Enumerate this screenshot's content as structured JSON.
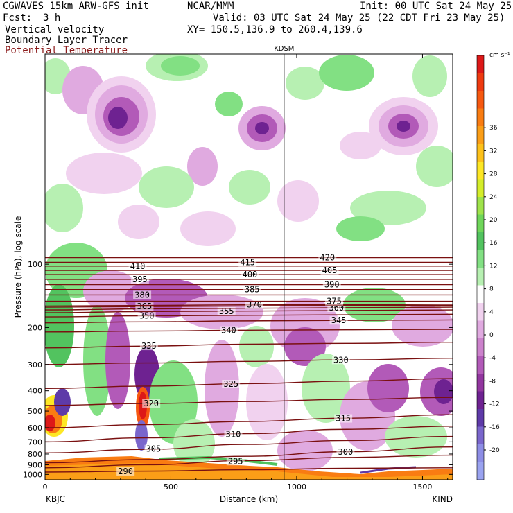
{
  "header": {
    "model": "CGWAVES 15km ARW-GFS init",
    "org": "NCAR/MMM",
    "init": "Init: 00 UTC Sat 24 May 25",
    "fcst_label": "Fcst:",
    "fcst_value": "3 h",
    "valid": "Valid: 03 UTC Sat 24 May 25 (22 CDT Fri 23 May 25)",
    "field1": "Vertical velocity",
    "field2": "Boundary Layer Tracer",
    "field3": "Potential Temperature",
    "xy": "XY= 150.5,136.9 to 260.4,139.6",
    "field3_color": "#8b1a1a"
  },
  "chart_data": {
    "type": "heatmap",
    "title": "",
    "xlabel": "Distance (km)",
    "ylabel": "Pressure (hPa), log scale",
    "xlim": [
      0,
      1620
    ],
    "ylim": [
      1060,
      10
    ],
    "yscale": "log",
    "x_ticks": [
      0,
      500,
      1000,
      1500
    ],
    "y_ticks": [
      100,
      200,
      300,
      400,
      500,
      600,
      700,
      800,
      900,
      1000
    ],
    "station_marker": {
      "label": "KDSM",
      "x": 950
    },
    "endpoints": {
      "left": "KBJC",
      "right": "KIND"
    },
    "colorbar": {
      "units": "cm s⁻¹",
      "tick_labels": [
        36,
        32,
        28,
        24,
        20,
        16,
        12,
        8,
        4,
        0,
        -4,
        -8,
        -12,
        -16,
        -20
      ],
      "colors": [
        "#dd1818",
        "#ee3a10",
        "#f65810",
        "#f97c12",
        "#fb9e17",
        "#fdc11a",
        "#fde725",
        "#d4ed2a",
        "#9fe34b",
        "#6fd65a",
        "#52c35f",
        "#82e083",
        "#b7f0b2",
        "#ffffff",
        "#f1d2ef",
        "#e0aae0",
        "#cc82cc",
        "#b25ab8",
        "#92369f",
        "#6e2291",
        "#5e3aa8",
        "#7a66cc",
        "#8d8de5",
        "#9aa3f0"
      ]
    },
    "theta_contours": [
      {
        "label": "290",
        "p": [
          975,
          965,
          950,
          935,
          930
        ]
      },
      {
        "label": "295",
        "p": [
          930,
          900,
          860,
          830,
          810
        ]
      },
      {
        "label": "300",
        "p": [
          880,
          850,
          820,
          780,
          740
        ]
      },
      {
        "label": "305",
        "p": [
          790,
          760,
          720,
          690,
          660
        ]
      },
      {
        "label": "310",
        "p": [
          700,
          670,
          640,
          610,
          590
        ]
      },
      {
        "label": "315",
        "p": [
          600,
          580,
          560,
          540,
          520
        ]
      },
      {
        "label": "320",
        "p": [
          470,
          460,
          450,
          440,
          430
        ]
      },
      {
        "label": "325",
        "p": [
          390,
          380,
          370,
          360,
          350
        ]
      },
      {
        "label": "330",
        "p": [
          300,
          295,
          290,
          285,
          280
        ]
      },
      {
        "label": "335",
        "p": [
          250,
          245,
          240,
          238,
          235
        ]
      },
      {
        "label": "340",
        "p": [
          210,
          208,
          206,
          205,
          204
        ]
      },
      {
        "label": "345",
        "p": [
          190,
          188,
          186,
          185,
          184
        ]
      },
      {
        "label": "350",
        "p": [
          178,
          176,
          175,
          174,
          173
        ]
      },
      {
        "label": "355",
        "p": [
          170,
          168,
          167,
          166,
          165
        ]
      },
      {
        "label": "360",
        "p": [
          165,
          163,
          162,
          161,
          160
        ]
      },
      {
        "label": "365",
        "p": [
          160,
          159,
          158,
          157,
          157
        ]
      },
      {
        "label": "370",
        "p": [
          158,
          157,
          156,
          156,
          155
        ]
      },
      {
        "label": "375",
        "p": [
          150,
          150,
          150,
          150,
          150
        ]
      },
      {
        "label": "380",
        "p": [
          140,
          140,
          140,
          140,
          140
        ]
      },
      {
        "label": "385",
        "p": [
          132,
          132,
          132,
          132,
          132
        ]
      },
      {
        "label": "390",
        "p": [
          125,
          125,
          125,
          125,
          125
        ]
      },
      {
        "label": "395",
        "p": [
          118,
          118,
          118,
          118,
          118
        ]
      },
      {
        "label": "400",
        "p": [
          112,
          112,
          112,
          112,
          112
        ]
      },
      {
        "label": "405",
        "p": [
          107,
          107,
          107,
          107,
          107
        ]
      },
      {
        "label": "410",
        "p": [
          102,
          102,
          102,
          102,
          102
        ]
      },
      {
        "label": "415",
        "p": [
          98,
          98,
          98,
          98,
          98
        ]
      },
      {
        "label": "420",
        "p": [
          93,
          93,
          93,
          93,
          93
        ]
      }
    ],
    "theta_contour_x": [
      0,
      400,
      800,
      1200,
      1620
    ]
  }
}
